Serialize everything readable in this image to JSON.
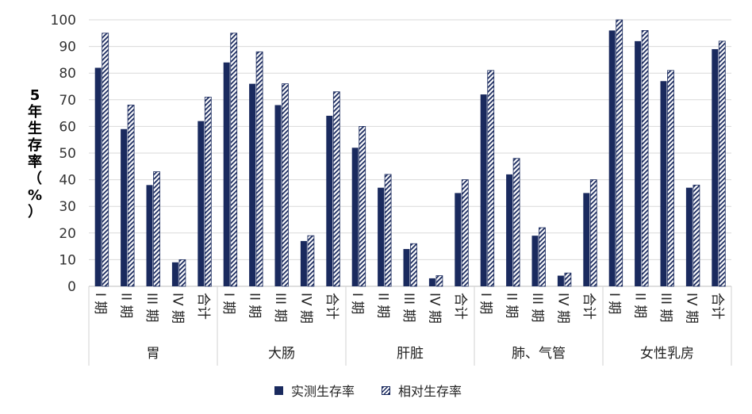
{
  "chart_data": {
    "type": "bar",
    "ylabel": "5年生存率（%）",
    "ylabel_chars": [
      "5",
      "年",
      "生",
      "存",
      "率",
      "（",
      "%",
      "）"
    ],
    "ylim": [
      0,
      100
    ],
    "yticks": [
      "0",
      "10",
      "20",
      "30",
      "40",
      "50",
      "60",
      "70",
      "80",
      "90",
      "100"
    ],
    "grid": true,
    "legend_position": "bottom",
    "colors": {
      "measured": "#1a2a5e",
      "relative": "#1a2a5e",
      "grid": "#d9d9d9"
    },
    "groups": [
      {
        "name": "胃",
        "categories": [
          "I 期",
          "II 期",
          "III 期",
          "IV 期",
          "合计"
        ],
        "series": [
          {
            "name": "实测生存率",
            "values": [
              82,
              59,
              38,
              9,
              62
            ]
          },
          {
            "name": "相对生存率",
            "values": [
              95,
              68,
              43,
              10,
              71
            ]
          }
        ]
      },
      {
        "name": "大肠",
        "categories": [
          "I 期",
          "II 期",
          "III 期",
          "IV 期",
          "合计"
        ],
        "series": [
          {
            "name": "实测生存率",
            "values": [
              84,
              76,
              68,
              17,
              64
            ]
          },
          {
            "name": "相对生存率",
            "values": [
              95,
              88,
              76,
              19,
              73
            ]
          }
        ]
      },
      {
        "name": "肝脏",
        "categories": [
          "I 期",
          "II 期",
          "III 期",
          "IV 期",
          "合计"
        ],
        "series": [
          {
            "name": "实测生存率",
            "values": [
              52,
              37,
              14,
              3,
              35
            ]
          },
          {
            "name": "相对生存率",
            "values": [
              60,
              42,
              16,
              4,
              40
            ]
          }
        ]
      },
      {
        "name": "肺、气管",
        "categories": [
          "I 期",
          "II 期",
          "III 期",
          "IV 期",
          "合计"
        ],
        "series": [
          {
            "name": "实测生存率",
            "values": [
              72,
              42,
              19,
              4,
              35
            ]
          },
          {
            "name": "相对生存率",
            "values": [
              81,
              48,
              22,
              5,
              40
            ]
          }
        ]
      },
      {
        "name": "女性乳房",
        "categories": [
          "I 期",
          "II 期",
          "III 期",
          "IV 期",
          "合计"
        ],
        "series": [
          {
            "name": "实测生存率",
            "values": [
              96,
              92,
              77,
              37,
              89
            ]
          },
          {
            "name": "相对生存率",
            "values": [
              100,
              96,
              81,
              38,
              92
            ]
          }
        ]
      }
    ],
    "legend": [
      {
        "name": "实测生存率",
        "style": "solid"
      },
      {
        "name": "相对生存率",
        "style": "hatched"
      }
    ]
  }
}
